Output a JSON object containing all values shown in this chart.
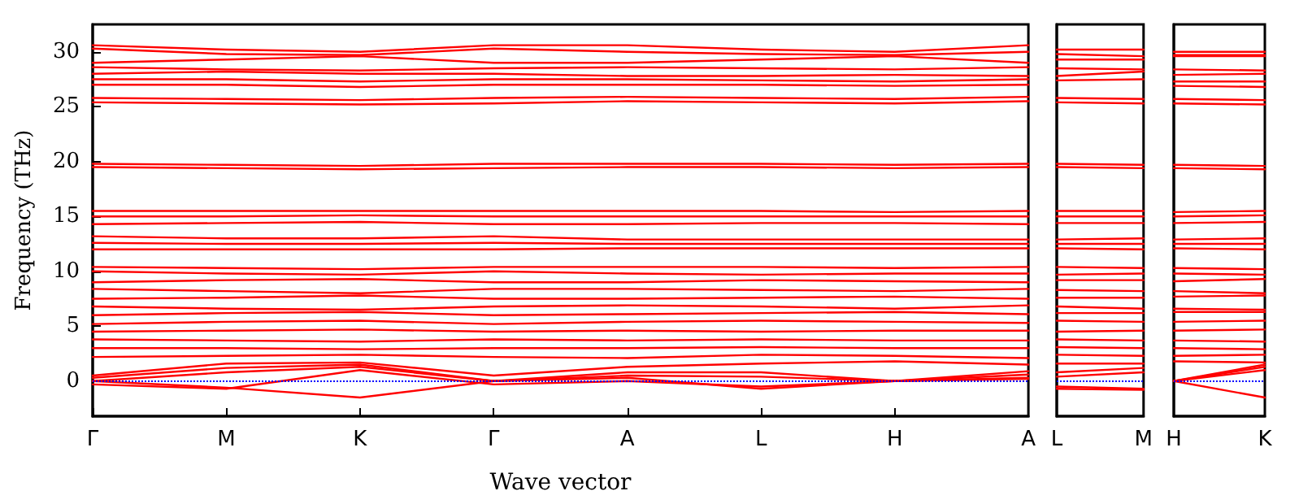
{
  "chart_data": [
    {
      "type": "line",
      "xlabel": "Wave vector",
      "ylabel": "Frequency (THz)",
      "grid": false,
      "categories": [
        "Γ",
        "M",
        "K",
        "Γ",
        "A",
        "L",
        "H",
        "A"
      ],
      "ylim": [
        -3.2,
        32.5
      ],
      "yticks": [
        0,
        5,
        10,
        15,
        20,
        25,
        30
      ],
      "ref_lines": [
        {
          "axis": "y",
          "value": 0,
          "color": "#0000ff",
          "line_style": "dotted"
        }
      ],
      "series": [
        {
          "color": "#ff0000",
          "values": [
            30.6,
            30.2,
            30.0,
            30.6,
            30.6,
            30.2,
            30.0,
            30.6
          ]
        },
        {
          "color": "#ff0000",
          "values": [
            30.3,
            29.8,
            29.7,
            30.3,
            30.0,
            29.8,
            29.7,
            30.0
          ]
        },
        {
          "color": "#ff0000",
          "values": [
            29.0,
            29.3,
            29.6,
            29.0,
            29.0,
            29.3,
            29.6,
            29.0
          ]
        },
        {
          "color": "#ff0000",
          "values": [
            28.6,
            28.4,
            28.3,
            28.5,
            28.6,
            28.5,
            28.4,
            28.6
          ]
        },
        {
          "color": "#ff0000",
          "values": [
            28.0,
            28.2,
            28.0,
            28.0,
            27.8,
            27.8,
            27.9,
            27.8
          ]
        },
        {
          "color": "#ff0000",
          "values": [
            27.5,
            27.5,
            27.3,
            27.5,
            27.5,
            27.4,
            27.3,
            27.5
          ]
        },
        {
          "color": "#ff0000",
          "values": [
            27.0,
            27.0,
            26.8,
            27.0,
            27.0,
            27.0,
            26.9,
            27.0
          ]
        },
        {
          "color": "#ff0000",
          "values": [
            25.8,
            25.7,
            25.6,
            25.8,
            25.9,
            25.8,
            25.7,
            25.9
          ]
        },
        {
          "color": "#ff0000",
          "values": [
            25.4,
            25.3,
            25.2,
            25.3,
            25.5,
            25.4,
            25.3,
            25.5
          ]
        },
        {
          "color": "#ff0000",
          "values": [
            19.8,
            19.7,
            19.6,
            19.8,
            19.8,
            19.8,
            19.7,
            19.8
          ]
        },
        {
          "color": "#ff0000",
          "values": [
            19.5,
            19.4,
            19.3,
            19.4,
            19.5,
            19.5,
            19.4,
            19.5
          ]
        },
        {
          "color": "#ff0000",
          "values": [
            15.5,
            15.5,
            15.5,
            15.5,
            15.5,
            15.5,
            15.4,
            15.5
          ]
        },
        {
          "color": "#ff0000",
          "values": [
            15.0,
            15.0,
            15.1,
            15.0,
            15.0,
            15.0,
            15.0,
            15.0
          ]
        },
        {
          "color": "#ff0000",
          "values": [
            14.3,
            14.4,
            14.5,
            14.3,
            14.3,
            14.4,
            14.4,
            14.3
          ]
        },
        {
          "color": "#ff0000",
          "values": [
            13.2,
            13.0,
            13.0,
            13.2,
            12.9,
            12.9,
            12.9,
            12.9
          ]
        },
        {
          "color": "#ff0000",
          "values": [
            12.6,
            12.5,
            12.5,
            12.6,
            12.5,
            12.5,
            12.5,
            12.5
          ]
        },
        {
          "color": "#ff0000",
          "values": [
            12.0,
            12.0,
            12.0,
            12.0,
            12.1,
            12.1,
            12.1,
            12.1
          ]
        },
        {
          "color": "#ff0000",
          "values": [
            10.4,
            10.3,
            10.2,
            10.4,
            10.4,
            10.4,
            10.3,
            10.4
          ]
        },
        {
          "color": "#ff0000",
          "values": [
            10.0,
            9.8,
            9.7,
            10.0,
            9.8,
            9.7,
            9.8,
            9.8
          ]
        },
        {
          "color": "#ff0000",
          "values": [
            9.0,
            9.2,
            9.3,
            9.0,
            9.0,
            9.2,
            9.1,
            9.0
          ]
        },
        {
          "color": "#ff0000",
          "values": [
            8.4,
            8.2,
            8.0,
            8.4,
            8.4,
            8.3,
            8.2,
            8.4
          ]
        },
        {
          "color": "#ff0000",
          "values": [
            7.5,
            7.6,
            7.8,
            7.5,
            7.5,
            7.6,
            7.7,
            7.5
          ]
        },
        {
          "color": "#ff0000",
          "values": [
            6.8,
            6.6,
            6.5,
            6.8,
            6.9,
            6.8,
            6.6,
            6.9
          ]
        },
        {
          "color": "#ff0000",
          "values": [
            6.0,
            6.2,
            6.3,
            6.0,
            6.1,
            6.2,
            6.3,
            6.1
          ]
        },
        {
          "color": "#ff0000",
          "values": [
            5.2,
            5.4,
            5.5,
            5.2,
            5.4,
            5.5,
            5.4,
            5.3
          ]
        },
        {
          "color": "#ff0000",
          "values": [
            4.5,
            4.6,
            4.7,
            4.5,
            4.6,
            4.5,
            4.6,
            4.6
          ]
        },
        {
          "color": "#ff0000",
          "values": [
            3.8,
            3.7,
            3.6,
            3.8,
            3.7,
            3.8,
            3.7,
            3.7
          ]
        },
        {
          "color": "#ff0000",
          "values": [
            3.0,
            3.0,
            2.9,
            3.0,
            3.0,
            3.1,
            3.0,
            3.0
          ]
        },
        {
          "color": "#ff0000",
          "values": [
            2.2,
            2.3,
            2.4,
            2.2,
            2.1,
            2.4,
            2.3,
            2.1
          ]
        },
        {
          "color": "#ff0000",
          "values": [
            0.5,
            1.6,
            1.7,
            0.5,
            1.3,
            1.6,
            1.8,
            1.5
          ]
        },
        {
          "color": "#ff0000",
          "values": [
            0.3,
            1.2,
            1.5,
            0.0,
            0.8,
            0.8,
            0.0,
            0.9
          ]
        },
        {
          "color": "#ff0000",
          "values": [
            0.0,
            0.8,
            1.3,
            0.0,
            0.5,
            0.4,
            0.0,
            0.6
          ]
        },
        {
          "color": "#ff0000",
          "values": [
            -0.3,
            -0.7,
            1.0,
            -0.3,
            0.0,
            -0.5,
            0.0,
            0.2
          ]
        },
        {
          "color": "#ff0000",
          "values": [
            0.0,
            -0.6,
            -1.5,
            0.0,
            0.3,
            -0.7,
            0.0,
            0.3
          ]
        }
      ]
    },
    {
      "type": "line",
      "tick_labels": "x",
      "categories": [
        "L",
        "M"
      ],
      "ylim": [
        -3.2,
        32.5
      ],
      "yticks": [
        0,
        5,
        10,
        15,
        20,
        25,
        30
      ],
      "ref_lines": [
        {
          "axis": "y",
          "value": 0,
          "color": "#0000ff",
          "line_style": "dotted"
        }
      ],
      "series": [
        {
          "color": "#ff0000",
          "values": [
            30.2,
            30.2
          ]
        },
        {
          "color": "#ff0000",
          "values": [
            29.8,
            29.6
          ]
        },
        {
          "color": "#ff0000",
          "values": [
            29.3,
            29.3
          ]
        },
        {
          "color": "#ff0000",
          "values": [
            28.5,
            28.4
          ]
        },
        {
          "color": "#ff0000",
          "values": [
            27.8,
            28.2
          ]
        },
        {
          "color": "#ff0000",
          "values": [
            27.4,
            27.5
          ]
        },
        {
          "color": "#ff0000",
          "values": [
            25.8,
            25.7
          ]
        },
        {
          "color": "#ff0000",
          "values": [
            25.4,
            25.3
          ]
        },
        {
          "color": "#ff0000",
          "values": [
            19.8,
            19.7
          ]
        },
        {
          "color": "#ff0000",
          "values": [
            19.5,
            19.4
          ]
        },
        {
          "color": "#ff0000",
          "values": [
            15.5,
            15.5
          ]
        },
        {
          "color": "#ff0000",
          "values": [
            15.0,
            15.0
          ]
        },
        {
          "color": "#ff0000",
          "values": [
            14.4,
            14.4
          ]
        },
        {
          "color": "#ff0000",
          "values": [
            12.9,
            13.0
          ]
        },
        {
          "color": "#ff0000",
          "values": [
            12.5,
            12.5
          ]
        },
        {
          "color": "#ff0000",
          "values": [
            12.1,
            12.0
          ]
        },
        {
          "color": "#ff0000",
          "values": [
            10.4,
            10.3
          ]
        },
        {
          "color": "#ff0000",
          "values": [
            9.7,
            9.8
          ]
        },
        {
          "color": "#ff0000",
          "values": [
            9.2,
            9.2
          ]
        },
        {
          "color": "#ff0000",
          "values": [
            8.3,
            8.2
          ]
        },
        {
          "color": "#ff0000",
          "values": [
            7.6,
            7.6
          ]
        },
        {
          "color": "#ff0000",
          "values": [
            6.8,
            6.6
          ]
        },
        {
          "color": "#ff0000",
          "values": [
            6.2,
            6.2
          ]
        },
        {
          "color": "#ff0000",
          "values": [
            5.5,
            5.4
          ]
        },
        {
          "color": "#ff0000",
          "values": [
            4.5,
            4.6
          ]
        },
        {
          "color": "#ff0000",
          "values": [
            3.8,
            3.7
          ]
        },
        {
          "color": "#ff0000",
          "values": [
            3.1,
            3.0
          ]
        },
        {
          "color": "#ff0000",
          "values": [
            2.4,
            2.3
          ]
        },
        {
          "color": "#ff0000",
          "values": [
            1.6,
            1.6
          ]
        },
        {
          "color": "#ff0000",
          "values": [
            0.8,
            1.2
          ]
        },
        {
          "color": "#ff0000",
          "values": [
            0.4,
            0.8
          ]
        },
        {
          "color": "#ff0000",
          "values": [
            -0.5,
            -0.7
          ]
        },
        {
          "color": "#ff0000",
          "values": [
            -0.7,
            -0.8
          ]
        }
      ]
    },
    {
      "type": "line",
      "tick_labels": "x",
      "categories": [
        "H",
        "K"
      ],
      "ylim": [
        -3.2,
        32.5
      ],
      "yticks": [
        0,
        5,
        10,
        15,
        20,
        25,
        30
      ],
      "ref_lines": [
        {
          "axis": "y",
          "value": 0,
          "color": "#0000ff",
          "line_style": "dotted"
        }
      ],
      "series": [
        {
          "color": "#ff0000",
          "values": [
            30.0,
            30.0
          ]
        },
        {
          "color": "#ff0000",
          "values": [
            29.7,
            29.7
          ]
        },
        {
          "color": "#ff0000",
          "values": [
            29.6,
            29.6
          ]
        },
        {
          "color": "#ff0000",
          "values": [
            28.4,
            28.3
          ]
        },
        {
          "color": "#ff0000",
          "values": [
            27.9,
            28.0
          ]
        },
        {
          "color": "#ff0000",
          "values": [
            27.3,
            27.3
          ]
        },
        {
          "color": "#ff0000",
          "values": [
            26.9,
            26.8
          ]
        },
        {
          "color": "#ff0000",
          "values": [
            25.7,
            25.6
          ]
        },
        {
          "color": "#ff0000",
          "values": [
            25.3,
            25.2
          ]
        },
        {
          "color": "#ff0000",
          "values": [
            19.7,
            19.6
          ]
        },
        {
          "color": "#ff0000",
          "values": [
            19.4,
            19.3
          ]
        },
        {
          "color": "#ff0000",
          "values": [
            15.4,
            15.5
          ]
        },
        {
          "color": "#ff0000",
          "values": [
            15.0,
            15.1
          ]
        },
        {
          "color": "#ff0000",
          "values": [
            14.4,
            14.5
          ]
        },
        {
          "color": "#ff0000",
          "values": [
            12.9,
            13.0
          ]
        },
        {
          "color": "#ff0000",
          "values": [
            12.5,
            12.5
          ]
        },
        {
          "color": "#ff0000",
          "values": [
            12.1,
            12.0
          ]
        },
        {
          "color": "#ff0000",
          "values": [
            10.3,
            10.2
          ]
        },
        {
          "color": "#ff0000",
          "values": [
            9.8,
            9.7
          ]
        },
        {
          "color": "#ff0000",
          "values": [
            9.1,
            9.3
          ]
        },
        {
          "color": "#ff0000",
          "values": [
            8.2,
            8.0
          ]
        },
        {
          "color": "#ff0000",
          "values": [
            7.7,
            7.8
          ]
        },
        {
          "color": "#ff0000",
          "values": [
            6.6,
            6.5
          ]
        },
        {
          "color": "#ff0000",
          "values": [
            6.3,
            6.3
          ]
        },
        {
          "color": "#ff0000",
          "values": [
            5.4,
            5.5
          ]
        },
        {
          "color": "#ff0000",
          "values": [
            4.6,
            4.7
          ]
        },
        {
          "color": "#ff0000",
          "values": [
            3.7,
            3.6
          ]
        },
        {
          "color": "#ff0000",
          "values": [
            3.0,
            2.9
          ]
        },
        {
          "color": "#ff0000",
          "values": [
            2.3,
            2.4
          ]
        },
        {
          "color": "#ff0000",
          "values": [
            1.8,
            1.7
          ]
        },
        {
          "color": "#ff0000",
          "values": [
            0.0,
            1.5
          ]
        },
        {
          "color": "#ff0000",
          "values": [
            0.0,
            1.3
          ]
        },
        {
          "color": "#ff0000",
          "values": [
            0.0,
            1.0
          ]
        },
        {
          "color": "#ff0000",
          "values": [
            0.0,
            -1.5
          ]
        }
      ]
    }
  ]
}
